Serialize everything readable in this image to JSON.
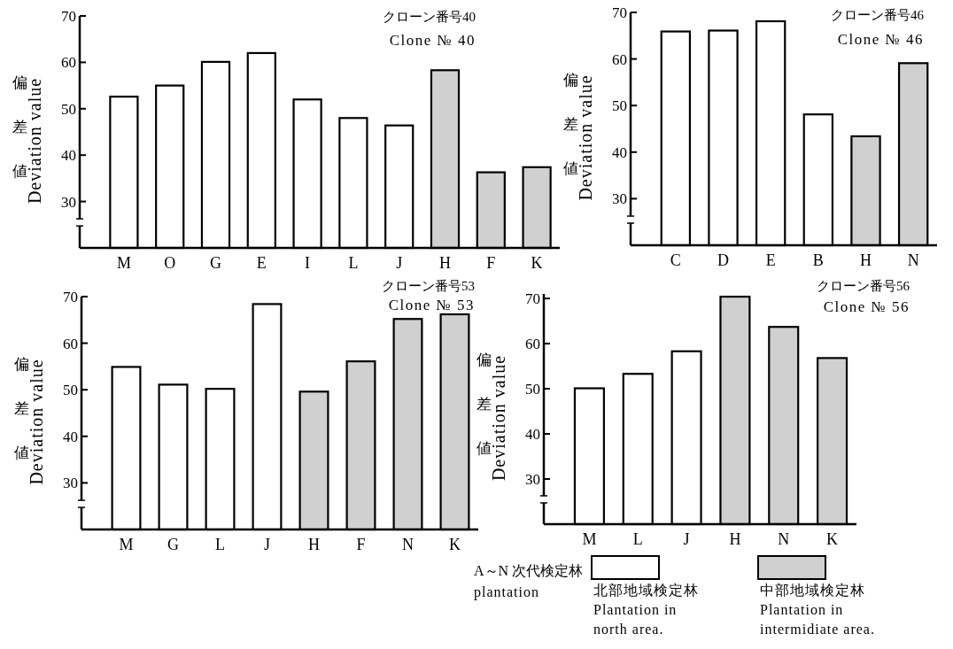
{
  "chart_data": [
    {
      "type": "bar",
      "title": "クローン番号40",
      "subtitle": "Clone № 40",
      "ylabel": "偏差値\nDeviation value",
      "categories": [
        "M",
        "O",
        "G",
        "E",
        "I",
        "L",
        "J",
        "H",
        "F",
        "K"
      ],
      "ylim": [
        20,
        70
      ],
      "yticks": [
        30,
        40,
        50,
        60,
        70
      ],
      "grid": false,
      "legend": false,
      "series": [
        {
          "color": "#ffffff",
          "values": [
            52.6,
            55.0,
            60.1,
            62.0,
            52.0,
            48.0,
            46.4,
            null,
            null,
            null
          ]
        },
        {
          "color": "#d0d0d0",
          "values": [
            null,
            null,
            null,
            null,
            null,
            null,
            null,
            58.3,
            36.3,
            37.4
          ]
        }
      ]
    },
    {
      "type": "bar",
      "title": "クローン番号46",
      "subtitle": "Clone № 46",
      "ylabel": "偏差値\nDeviation value",
      "categories": [
        "C",
        "D",
        "E",
        "B",
        "H",
        "N"
      ],
      "ylim": [
        20,
        70
      ],
      "yticks": [
        30,
        40,
        50,
        60,
        70
      ],
      "grid": false,
      "legend": false,
      "series": [
        {
          "color": "#ffffff",
          "values": [
            65.9,
            66.1,
            68.1,
            48.1,
            null,
            null
          ]
        },
        {
          "color": "#d0d0d0",
          "values": [
            null,
            null,
            null,
            null,
            43.4,
            59.1
          ]
        }
      ]
    },
    {
      "type": "bar",
      "title": "クローン番号53",
      "subtitle": "Clone № 53",
      "ylabel": "偏差値\nDeviation value",
      "categories": [
        "M",
        "G",
        "L",
        "J",
        "H",
        "F",
        "N",
        "K"
      ],
      "ylim": [
        20,
        70
      ],
      "yticks": [
        30,
        40,
        50,
        60,
        70
      ],
      "grid": false,
      "legend": false,
      "series": [
        {
          "color": "#ffffff",
          "values": [
            54.9,
            51.1,
            50.2,
            68.4,
            null,
            null,
            null,
            null
          ]
        },
        {
          "color": "#d0d0d0",
          "values": [
            null,
            null,
            null,
            null,
            49.6,
            56.1,
            65.2,
            66.2
          ]
        }
      ]
    },
    {
      "type": "bar",
      "title": "クローン番号56",
      "subtitle": "Clone № 56",
      "ylabel": "偏差値\nDeviation value",
      "categories": [
        "M",
        "L",
        "J",
        "H",
        "N",
        "K"
      ],
      "ylim": [
        20,
        71
      ],
      "yticks": [
        30,
        40,
        50,
        60,
        70
      ],
      "grid": false,
      "legend": "bottom",
      "legend_title": "A～N 次代検定林\nplantation",
      "series": [
        {
          "name": "北部地域検定林\nPlantation in\nnorth area.",
          "color": "#ffffff",
          "values": [
            50.1,
            53.3,
            58.3,
            null,
            null,
            null
          ]
        },
        {
          "name": "中部地域検定林\nPlantation in\nintermidiate area.",
          "color": "#d0d0d0",
          "values": [
            null,
            null,
            null,
            70.4,
            63.7,
            56.8
          ]
        }
      ]
    }
  ]
}
